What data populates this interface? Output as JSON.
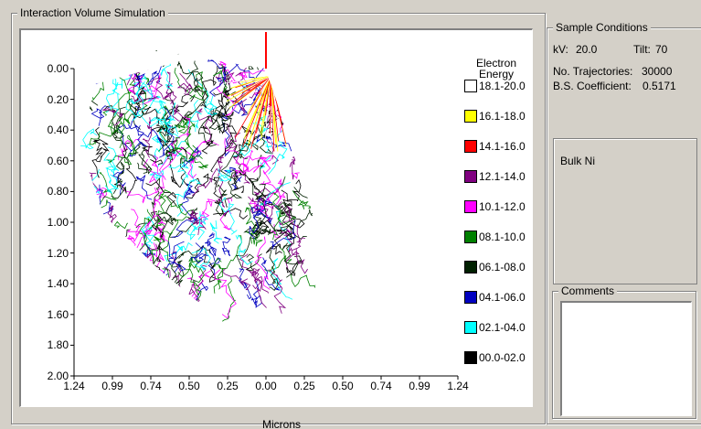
{
  "window": {
    "simulation_title": "Interaction Volume Simulation",
    "conditions_title": "Sample Conditions",
    "comments_title": "Comments"
  },
  "chart_data": {
    "type": "scatter",
    "title": "",
    "xlabel": "Microns",
    "ylabel": "",
    "x_tick_labels": [
      "1.24",
      "0.99",
      "0.74",
      "0.50",
      "0.25",
      "0.00",
      "0.25",
      "0.50",
      "0.74",
      "0.99",
      "1.24"
    ],
    "y_tick_labels": [
      "0.00",
      "0.20",
      "0.40",
      "0.60",
      "0.80",
      "1.00",
      "1.20",
      "1.40",
      "1.60",
      "1.80",
      "2.00"
    ],
    "xlim": [
      -1.24,
      1.24
    ],
    "ylim": [
      0,
      2.0
    ],
    "y_inverted": true,
    "legend": {
      "title": "Electron Energy",
      "placement": "right",
      "entries": [
        {
          "label": "18.1-20.0",
          "color": "#ffffff"
        },
        {
          "label": "16.1-18.0",
          "color": "#ffff00"
        },
        {
          "label": "14.1-16.0",
          "color": "#ff0000"
        },
        {
          "label": "12.1-14.0",
          "color": "#800080"
        },
        {
          "label": "10.1-12.0",
          "color": "#ff00ff"
        },
        {
          "label": "08.1-10.0",
          "color": "#008000"
        },
        {
          "label": "06.1-08.0",
          "color": "#002000"
        },
        {
          "label": "04.1-06.0",
          "color": "#0000c0"
        },
        {
          "label": "02.1-04.0",
          "color": "#00ffff"
        },
        {
          "label": "00.0-02.0",
          "color": "#000000"
        }
      ]
    },
    "beam": {
      "color": "#ff0000",
      "x": 0.0
    },
    "surface_line": {
      "color": "#ffffff",
      "from": [
        0.0,
        0.0
      ],
      "to": [
        0.7,
        2.0
      ]
    },
    "trajectory_region": {
      "top": [
        [
          -1.24,
          -0.2
        ],
        [
          -0.6,
          -0.2
        ],
        [
          0.0,
          -0.2
        ]
      ],
      "bottom": [
        [
          -1.1,
          0.1
        ],
        [
          -1.2,
          0.5
        ],
        [
          -1.05,
          0.95
        ],
        [
          -0.7,
          1.3
        ],
        [
          -0.4,
          1.55
        ],
        [
          -0.15,
          1.75
        ],
        [
          0.1,
          1.6
        ],
        [
          0.35,
          1.4
        ],
        [
          0.4,
          1.25
        ],
        [
          0.0,
          0.0
        ]
      ]
    }
  },
  "conditions": {
    "kv_label": "kV:",
    "kv_value": "20.0",
    "tilt_label": "Tilt:",
    "tilt_value": "70",
    "trajectories_label": "No. Trajectories:",
    "trajectories_value": "30000",
    "bs_label": "B.S. Coefficient:",
    "bs_value": "0.5171",
    "sample_name": "Bulk Ni"
  },
  "comments": {
    "value": ""
  }
}
